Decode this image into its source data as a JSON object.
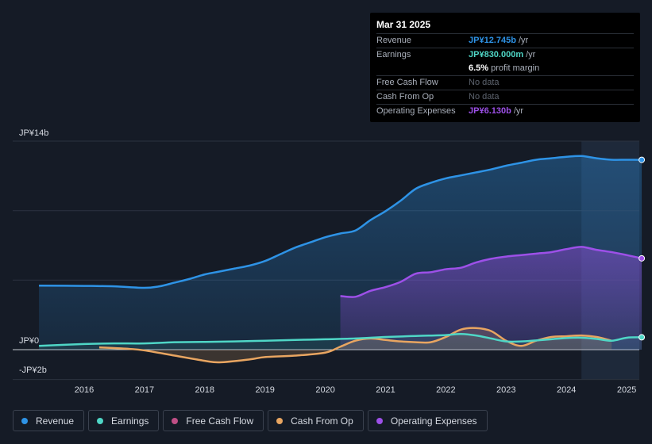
{
  "tooltip": {
    "date": "Mar 31 2025",
    "rows": [
      {
        "label": "Revenue",
        "value": "JP¥12.745b",
        "unit": "/yr",
        "color": "#2e93e6"
      },
      {
        "label": "Earnings",
        "value": "JP¥830.000m",
        "unit": "/yr",
        "color": "#4fd6c6"
      },
      {
        "label": "",
        "value": "6.5%",
        "unit": "profit margin",
        "color": "#ffffff"
      },
      {
        "label": "Free Cash Flow",
        "value": "No data",
        "unit": "",
        "color": "#5d636e"
      },
      {
        "label": "Cash From Op",
        "value": "No data",
        "unit": "",
        "color": "#5d636e"
      },
      {
        "label": "Operating Expenses",
        "value": "JP¥6.130b",
        "unit": "/yr",
        "color": "#9d50e8"
      }
    ]
  },
  "legend": [
    {
      "label": "Revenue",
      "color": "#2e93e6"
    },
    {
      "label": "Earnings",
      "color": "#4fd6c6"
    },
    {
      "label": "Free Cash Flow",
      "color": "#c04f86"
    },
    {
      "label": "Cash From Op",
      "color": "#e8a561"
    },
    {
      "label": "Operating Expenses",
      "color": "#9d50e8"
    }
  ],
  "chart_data": {
    "type": "area",
    "title": "",
    "xlabel": "",
    "ylabel": "",
    "ylim": [
      -2,
      14
    ],
    "y_tick_labels": [
      "JP¥14b",
      "JP¥0",
      "-JP¥2b"
    ],
    "x_tick_labels": [
      "2016",
      "2017",
      "2018",
      "2019",
      "2020",
      "2021",
      "2022",
      "2023",
      "2024",
      "2025"
    ],
    "highlight_from": 2024.25,
    "series": [
      {
        "name": "Revenue",
        "color": "#2e93e6",
        "x": [
          2015.25,
          2016.0,
          2016.5,
          2017.0,
          2017.25,
          2017.5,
          2017.75,
          2018.0,
          2018.25,
          2018.5,
          2018.75,
          2019.0,
          2019.25,
          2019.5,
          2019.75,
          2020.0,
          2020.25,
          2020.5,
          2020.75,
          2021.0,
          2021.25,
          2021.5,
          2021.75,
          2022.0,
          2022.25,
          2022.5,
          2022.75,
          2023.0,
          2023.25,
          2023.5,
          2023.75,
          2024.0,
          2024.25,
          2024.5,
          2024.75,
          2025.0,
          2025.25
        ],
        "values": [
          4.3,
          4.28,
          4.25,
          4.15,
          4.25,
          4.5,
          4.75,
          5.05,
          5.25,
          5.45,
          5.65,
          5.95,
          6.4,
          6.85,
          7.2,
          7.55,
          7.8,
          8.0,
          8.7,
          9.3,
          10.0,
          10.8,
          11.2,
          11.5,
          11.7,
          11.9,
          12.1,
          12.35,
          12.55,
          12.75,
          12.85,
          12.95,
          13.0,
          12.85,
          12.75,
          12.75,
          12.745
        ]
      },
      {
        "name": "Earnings",
        "color": "#4fd6c6",
        "x": [
          2015.25,
          2016.0,
          2016.5,
          2017.0,
          2017.5,
          2018.0,
          2018.5,
          2019.0,
          2019.5,
          2020.0,
          2020.5,
          2021.0,
          2021.5,
          2022.0,
          2022.25,
          2022.5,
          2022.75,
          2023.0,
          2023.25,
          2023.5,
          2023.75,
          2024.0,
          2024.25,
          2024.5,
          2024.75,
          2025.0,
          2025.25
        ],
        "values": [
          0.25,
          0.38,
          0.42,
          0.42,
          0.5,
          0.52,
          0.55,
          0.6,
          0.65,
          0.7,
          0.75,
          0.85,
          0.92,
          0.98,
          1.05,
          0.95,
          0.75,
          0.55,
          0.55,
          0.62,
          0.7,
          0.78,
          0.8,
          0.72,
          0.6,
          0.8,
          0.83
        ]
      },
      {
        "name": "Cash From Op",
        "color": "#e8a561",
        "x": [
          2016.25,
          2016.75,
          2017.0,
          2017.5,
          2018.0,
          2018.25,
          2018.75,
          2019.0,
          2019.5,
          2020.0,
          2020.25,
          2020.5,
          2020.75,
          2021.0,
          2021.25,
          2021.5,
          2021.75,
          2022.0,
          2022.25,
          2022.5,
          2022.75,
          2023.0,
          2023.25,
          2023.5,
          2023.75,
          2024.0,
          2024.25,
          2024.5,
          2024.75
        ],
        "values": [
          0.15,
          0.05,
          -0.05,
          -0.4,
          -0.75,
          -0.85,
          -0.65,
          -0.5,
          -0.4,
          -0.2,
          0.2,
          0.6,
          0.75,
          0.65,
          0.55,
          0.5,
          0.5,
          0.85,
          1.35,
          1.45,
          1.25,
          0.6,
          0.25,
          0.6,
          0.85,
          0.9,
          0.95,
          0.85,
          0.6
        ]
      },
      {
        "name": "Operating Expenses",
        "color": "#9d50e8",
        "x": [
          2020.25,
          2020.5,
          2020.75,
          2021.0,
          2021.25,
          2021.5,
          2021.75,
          2022.0,
          2022.25,
          2022.5,
          2022.75,
          2023.0,
          2023.25,
          2023.5,
          2023.75,
          2024.0,
          2024.25,
          2024.5,
          2024.75,
          2025.0,
          2025.25
        ],
        "values": [
          3.6,
          3.55,
          3.95,
          4.2,
          4.55,
          5.1,
          5.2,
          5.4,
          5.5,
          5.85,
          6.1,
          6.25,
          6.35,
          6.45,
          6.55,
          6.75,
          6.9,
          6.7,
          6.55,
          6.35,
          6.13
        ]
      },
      {
        "name": "Free Cash Flow",
        "color": "#c04f86",
        "x": [],
        "values": []
      }
    ]
  }
}
